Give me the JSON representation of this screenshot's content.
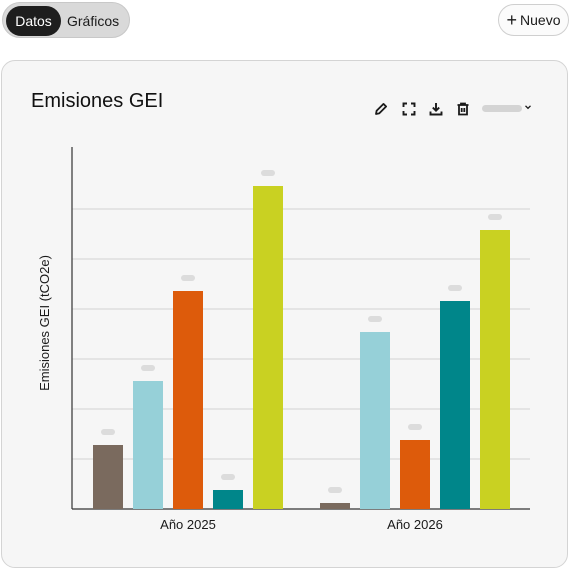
{
  "view_toggle": {
    "active": "Datos",
    "inactive": "Gráficos"
  },
  "new_button": {
    "label": "Nuevo"
  },
  "card": {
    "title": "Emisiones GEI",
    "toolbar": {
      "icons": [
        "edit-icon",
        "expand-icon",
        "download-icon",
        "delete-icon",
        "chevron-down-icon"
      ]
    }
  },
  "chart_data": {
    "type": "bar",
    "title": "",
    "ylabel": "Emisiones GEI (tCO2e)",
    "xlabel": "",
    "categories": [
      "Año 2025",
      "Año 2026"
    ],
    "series": [
      {
        "color": "#7a6a5e",
        "values": [
          64,
          6
        ]
      },
      {
        "color": "#96d0d8",
        "values": [
          128,
          177
        ]
      },
      {
        "color": "#dd5b0b",
        "values": [
          218,
          69
        ]
      },
      {
        "color": "#00868a",
        "values": [
          19,
          208
        ]
      },
      {
        "color": "#c9d122",
        "values": [
          323,
          279
        ]
      }
    ],
    "ylim": [
      0,
      362
    ],
    "grid": true,
    "legend": "none"
  }
}
